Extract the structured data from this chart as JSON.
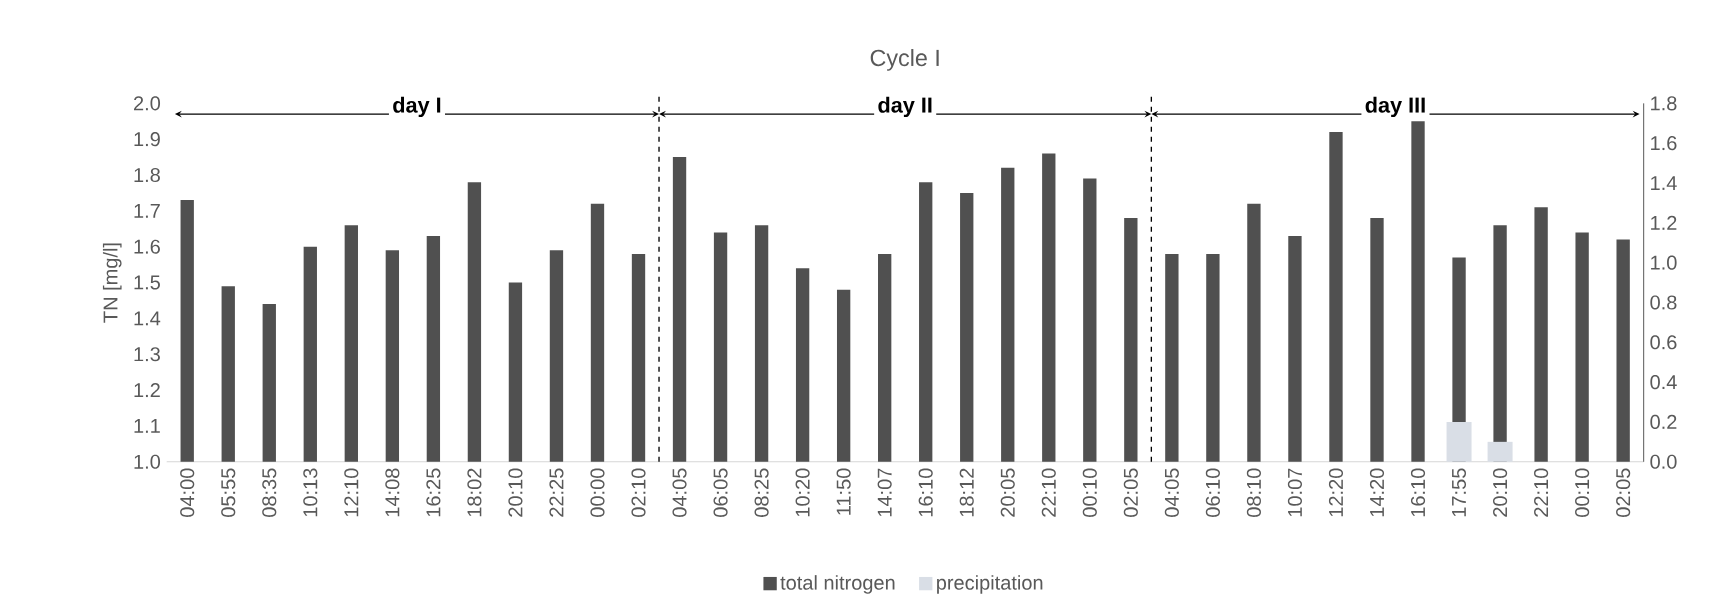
{
  "chart_data": {
    "type": "bar",
    "title": "Cycle I",
    "ylabel": "TN [mg/l]",
    "categories": [
      "04:00",
      "05:55",
      "08:35",
      "10:13",
      "12:10",
      "14:08",
      "16:25",
      "18:02",
      "20:10",
      "22:25",
      "00:00",
      "02:10",
      "04:05",
      "06:05",
      "08:25",
      "10:20",
      "11:50",
      "14:07",
      "16:10",
      "18:12",
      "20:05",
      "22:10",
      "00:10",
      "02:05",
      "04:05",
      "06:10",
      "08:10",
      "10:07",
      "12:20",
      "14:20",
      "16:10",
      "17:55",
      "20:10",
      "22:10",
      "00:10",
      "02:05"
    ],
    "series": [
      {
        "name": "total nitrogen",
        "color": "#505050",
        "values": [
          1.73,
          1.49,
          1.44,
          1.6,
          1.66,
          1.59,
          1.63,
          1.78,
          1.5,
          1.59,
          1.72,
          1.58,
          1.85,
          1.64,
          1.66,
          1.54,
          1.48,
          1.58,
          1.78,
          1.75,
          1.82,
          1.86,
          1.79,
          1.68,
          1.58,
          1.58,
          1.72,
          1.63,
          1.92,
          1.68,
          1.95,
          1.57,
          1.66,
          1.71,
          1.64,
          1.62
        ]
      },
      {
        "name": "precipitation",
        "color": "#d9dee6",
        "axis": "y2",
        "values": [
          null,
          null,
          null,
          null,
          null,
          null,
          null,
          null,
          null,
          null,
          null,
          null,
          null,
          null,
          null,
          null,
          null,
          null,
          null,
          null,
          null,
          null,
          null,
          null,
          null,
          null,
          null,
          null,
          null,
          null,
          null,
          0.2,
          0.1,
          null,
          null,
          null
        ]
      }
    ],
    "ylim": [
      1.0,
      2.0
    ],
    "yticks": [
      {
        "value": 1.0,
        "label": "1.0"
      },
      {
        "value": 1.1,
        "label": "1.1"
      },
      {
        "value": 1.2,
        "label": "1.2"
      },
      {
        "value": 1.3,
        "label": "1.3"
      },
      {
        "value": 1.4,
        "label": "1.4"
      },
      {
        "value": 1.5,
        "label": "1.5"
      },
      {
        "value": 1.6,
        "label": "1.6"
      },
      {
        "value": 1.7,
        "label": "1.7"
      },
      {
        "value": 1.8,
        "label": "1.8"
      },
      {
        "value": 1.9,
        "label": "1.9"
      },
      {
        "value": 2.0,
        "label": "2.0"
      }
    ],
    "y2lim": [
      0.0,
      1.8
    ],
    "y2ticks": [
      {
        "value": 0.0,
        "label": "0.0"
      },
      {
        "value": 0.2,
        "label": "0.2"
      },
      {
        "value": 0.4,
        "label": "0.4"
      },
      {
        "value": 0.6,
        "label": "0.6"
      },
      {
        "value": 0.8,
        "label": "0.8"
      },
      {
        "value": 1.0,
        "label": "1.0"
      },
      {
        "value": 1.2,
        "label": "1.2"
      },
      {
        "value": 1.4,
        "label": "1.4"
      },
      {
        "value": 1.6,
        "label": "1.6"
      },
      {
        "value": 1.8,
        "label": "1.8"
      }
    ],
    "annotations": [
      "**day I**",
      "**day II**",
      "**day III**"
    ],
    "legend": "bottom"
  }
}
